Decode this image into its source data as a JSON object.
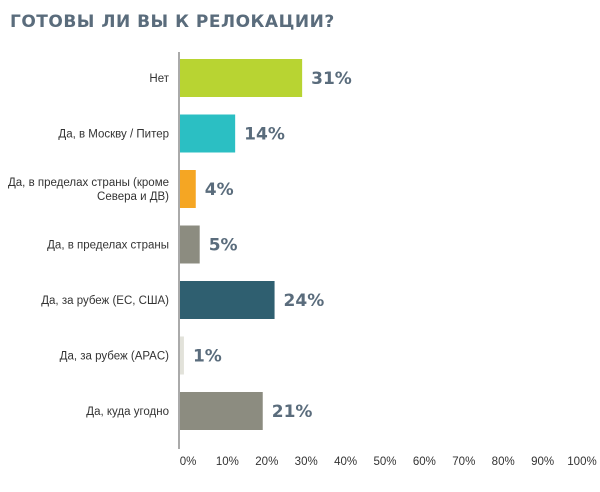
{
  "chart_data": {
    "type": "bar",
    "orientation": "horizontal",
    "title": "ГОТОВЫ ЛИ ВЫ К РЕЛОКАЦИИ?",
    "categories": [
      [
        "Нет"
      ],
      [
        "Да, в Москву / Питер"
      ],
      [
        "Да, в пределах страны (кроме",
        "Севера и ДВ)"
      ],
      [
        "Да, в пределах страны"
      ],
      [
        "Да, за рубеж (ЕС, США)"
      ],
      [
        "Да, за рубеж (APAC)"
      ],
      [
        "Да, куда угодно"
      ]
    ],
    "values": [
      31,
      14,
      4,
      5,
      24,
      1,
      21
    ],
    "value_labels": [
      "31%",
      "14%",
      "4%",
      "5%",
      "24%",
      "1%",
      "21%"
    ],
    "colors": [
      "#b8d432",
      "#2bbfc3",
      "#f5a623",
      "#8c8c80",
      "#2f5f70",
      "#e2e2da",
      "#8c8c80"
    ],
    "xlim": [
      0,
      100
    ],
    "xticks": [
      "0%",
      "10%",
      "20%",
      "30%",
      "40%",
      "50%",
      "60%",
      "70%",
      "80%",
      "90%",
      "100%"
    ],
    "grid": false,
    "legend": "none"
  }
}
